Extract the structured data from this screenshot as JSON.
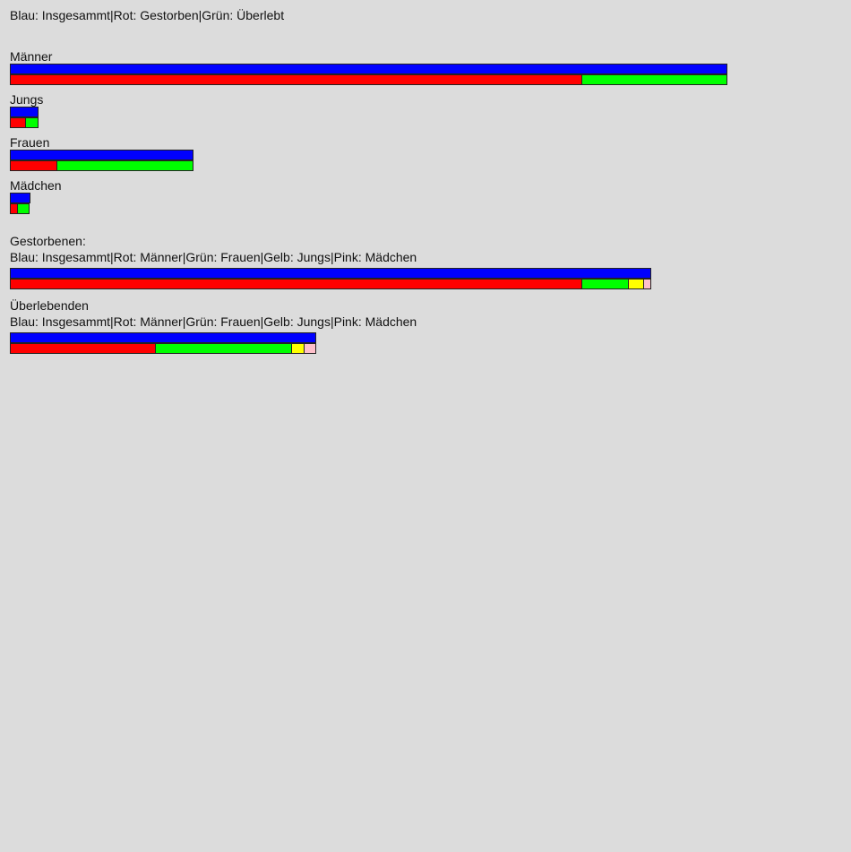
{
  "legend_top": "Blau: Insgesammt|Rot: Gestorben|Grün: Überlebt",
  "colors": {
    "total": "#0000ff",
    "died": "#ff0000",
    "survived": "#00ff00",
    "men": "#ff0000",
    "women": "#00ff00",
    "boys": "#ffff00",
    "girls": "#ffc0cb"
  },
  "chart_data": [
    {
      "type": "bar",
      "groups": [
        {
          "label": "Männer",
          "total": 1667,
          "died": 1329,
          "survived": 338
        },
        {
          "label": "Jungs",
          "total": 64,
          "died": 35,
          "survived": 29
        },
        {
          "label": "Frauen",
          "total": 425,
          "died": 109,
          "survived": 316
        },
        {
          "label": "Mädchen",
          "total": 45,
          "died": 17,
          "survived": 28
        }
      ]
    },
    {
      "type": "bar",
      "title": "Gestorbenen:",
      "legend": "Blau: Insgesammt|Rot: Männer|Grün: Frauen|Gelb: Jungs|Pink: Mädchen",
      "total": 1490,
      "segments": {
        "men": 1329,
        "women": 109,
        "boys": 35,
        "girls": 17
      }
    },
    {
      "type": "bar",
      "title": "Überlebenden",
      "legend": "Blau: Insgesammt|Rot: Männer|Grün: Frauen|Gelb: Jungs|Pink: Mädchen",
      "total": 711,
      "segments": {
        "men": 338,
        "women": 316,
        "boys": 29,
        "girls": 28
      }
    }
  ]
}
